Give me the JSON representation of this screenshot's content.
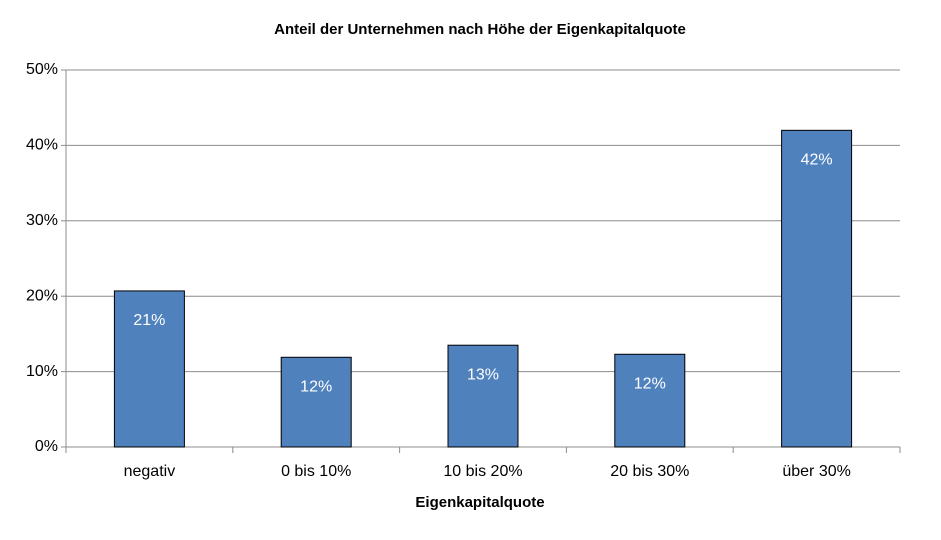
{
  "chart_data": {
    "type": "bar",
    "title": "Anteil der Unternehmen nach Höhe der Eigenkapitalquote",
    "x_label": "Eigenkapitalquote",
    "categories": [
      "negativ",
      "0 bis  10%",
      "10 bis 20%",
      "20 bis 30%",
      "über 30%"
    ],
    "values": [
      20.7,
      11.9,
      13.5,
      12.3,
      42.0
    ],
    "value_labels": [
      "21%",
      "12%",
      "13%",
      "12%",
      "42%"
    ],
    "color": "#4f81bd",
    "ylim": [
      0,
      50
    ],
    "yticks": [
      {
        "value": 0,
        "label": "0%"
      },
      {
        "value": 10,
        "label": "10%"
      },
      {
        "value": 20,
        "label": "20%"
      },
      {
        "value": 30,
        "label": "30%"
      },
      {
        "value": 40,
        "label": "40%"
      },
      {
        "value": 50,
        "label": "50%"
      }
    ],
    "grid": true
  }
}
